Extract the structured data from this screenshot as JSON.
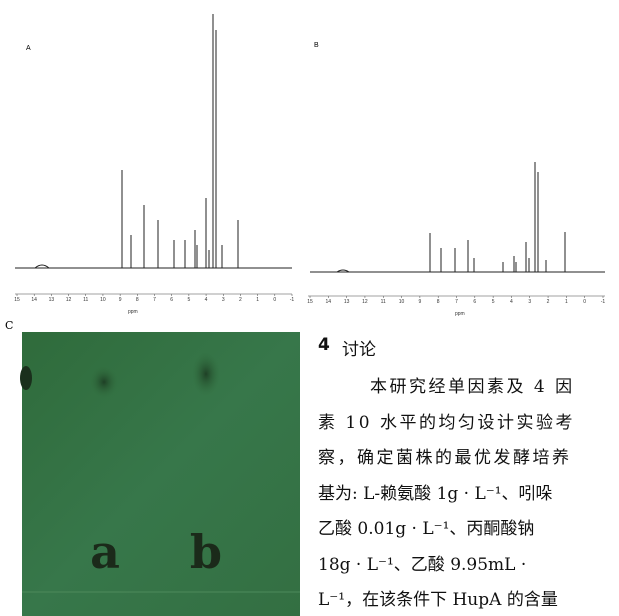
{
  "figure": {
    "panels": [
      {
        "label": "A",
        "axis_label": "ppm",
        "ticks": [
          "15",
          "14",
          "13",
          "12",
          "11",
          "10",
          "9",
          "8",
          "7",
          "6",
          "5",
          "4",
          "3",
          "2",
          "1",
          "0",
          "-1"
        ]
      },
      {
        "label": "B",
        "axis_label": "ppm",
        "ticks": [
          "15",
          "14",
          "13",
          "12",
          "11",
          "10",
          "9",
          "8",
          "7",
          "6",
          "5",
          "4",
          "3",
          "2",
          "1",
          "0",
          "-1"
        ]
      },
      {
        "label": "C",
        "lanes": [
          "a",
          "b"
        ]
      }
    ]
  },
  "section": {
    "number": "4",
    "title": "讨论",
    "lines": [
      "本研究经单因素及 4 因",
      "素 10 水平的均匀设计实验考",
      "察，确定菌株的最优发酵培养",
      "基为: L-赖氨酸 1g · L⁻¹、吲哚",
      "乙酸 0.01g · L⁻¹、丙酮酸钠",
      "18g · L⁻¹、乙酸 9.95mL ·",
      "L⁻¹，在该条件下 HupA 的含量"
    ]
  }
}
